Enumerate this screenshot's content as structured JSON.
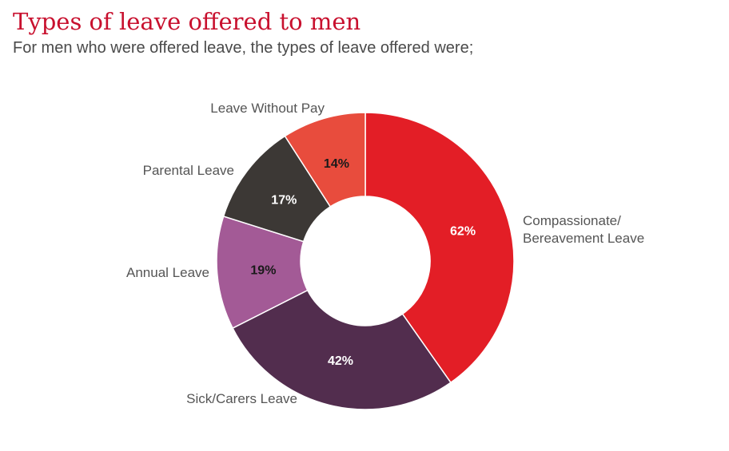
{
  "title": "Types of leave offered to men",
  "subtitle": "For men who were offered leave, the types of leave offered were;",
  "chart_data": {
    "type": "pie",
    "style": "donut",
    "categories": [
      "Compassionate/\nBereavement Leave",
      "Sick/Carers Leave",
      "Annual Leave",
      "Parental Leave",
      "Leave Without Pay"
    ],
    "values": [
      62,
      42,
      19,
      17,
      14
    ],
    "data_labels": [
      "62%",
      "42%",
      "19%",
      "17%",
      "14%"
    ],
    "colors": [
      "#e31e26",
      "#522d4e",
      "#a35a96",
      "#3c3835",
      "#e84c3d"
    ],
    "label_colors": [
      "#ffffff",
      "#ffffff",
      "#1a1a1a",
      "#ffffff",
      "#1a1a1a"
    ],
    "legend": "none"
  }
}
